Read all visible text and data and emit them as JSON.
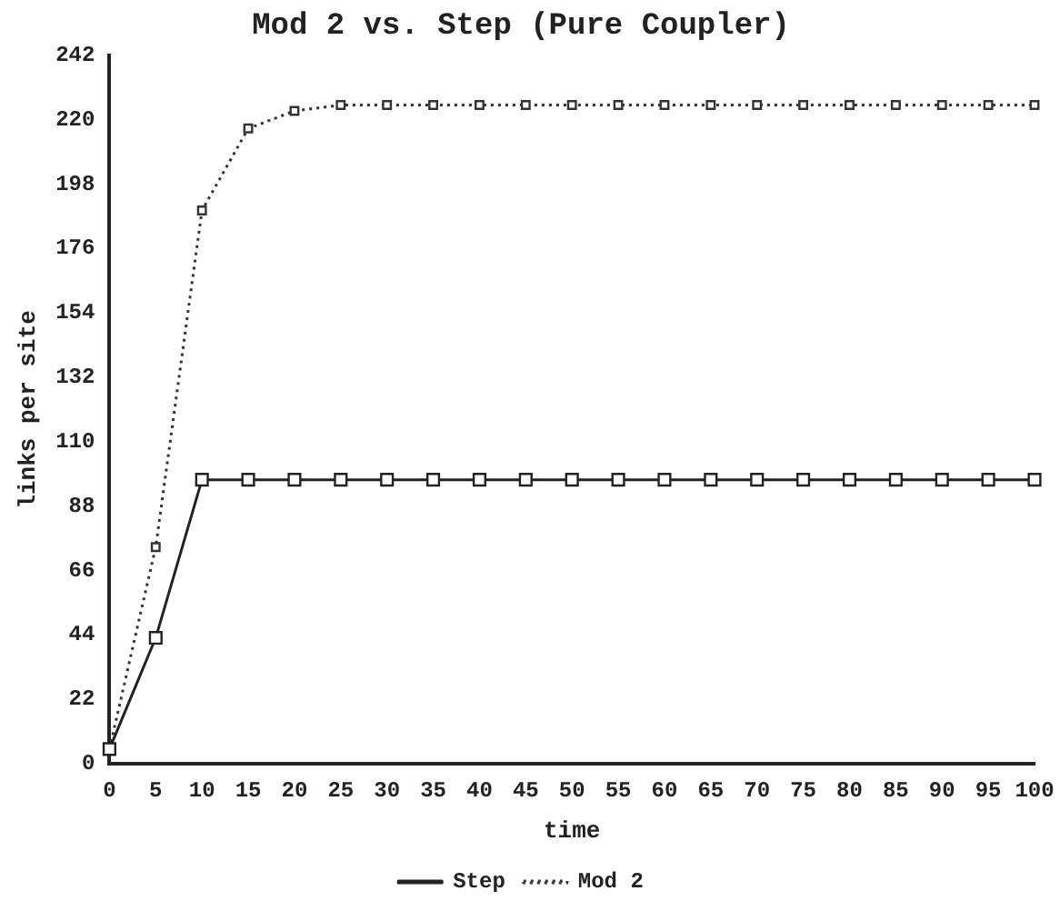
{
  "chart_data": {
    "type": "line",
    "title": "Mod 2 vs. Step (Pure Coupler)",
    "xlabel": "time",
    "ylabel": "links per site",
    "categories": [
      "0",
      "5",
      "10",
      "15",
      "20",
      "25",
      "30",
      "35",
      "40",
      "45",
      "50",
      "55",
      "60",
      "65",
      "70",
      "75",
      "80",
      "85",
      "90",
      "95",
      "100"
    ],
    "series": [
      {
        "name": "Mod 2",
        "color": "#333333",
        "line_style": "dotted",
        "marker": "square",
        "values": [
          5,
          74,
          189,
          217,
          223,
          225,
          225,
          225,
          225,
          225,
          225,
          225,
          225,
          225,
          225,
          225,
          225,
          225,
          225,
          225,
          225
        ]
      },
      {
        "name": "Step",
        "color": "#222222",
        "line_style": "solid",
        "marker": "square",
        "values": [
          5,
          43,
          97,
          97,
          97,
          97,
          97,
          97,
          97,
          97,
          97,
          97,
          97,
          97,
          97,
          97,
          97,
          97,
          97,
          97,
          97
        ]
      }
    ],
    "ylim": [
      0,
      242
    ],
    "yticks": [
      0,
      22,
      44,
      66,
      88,
      110,
      132,
      154,
      176,
      198,
      220,
      242
    ],
    "grid": false,
    "legend": "bottom"
  }
}
